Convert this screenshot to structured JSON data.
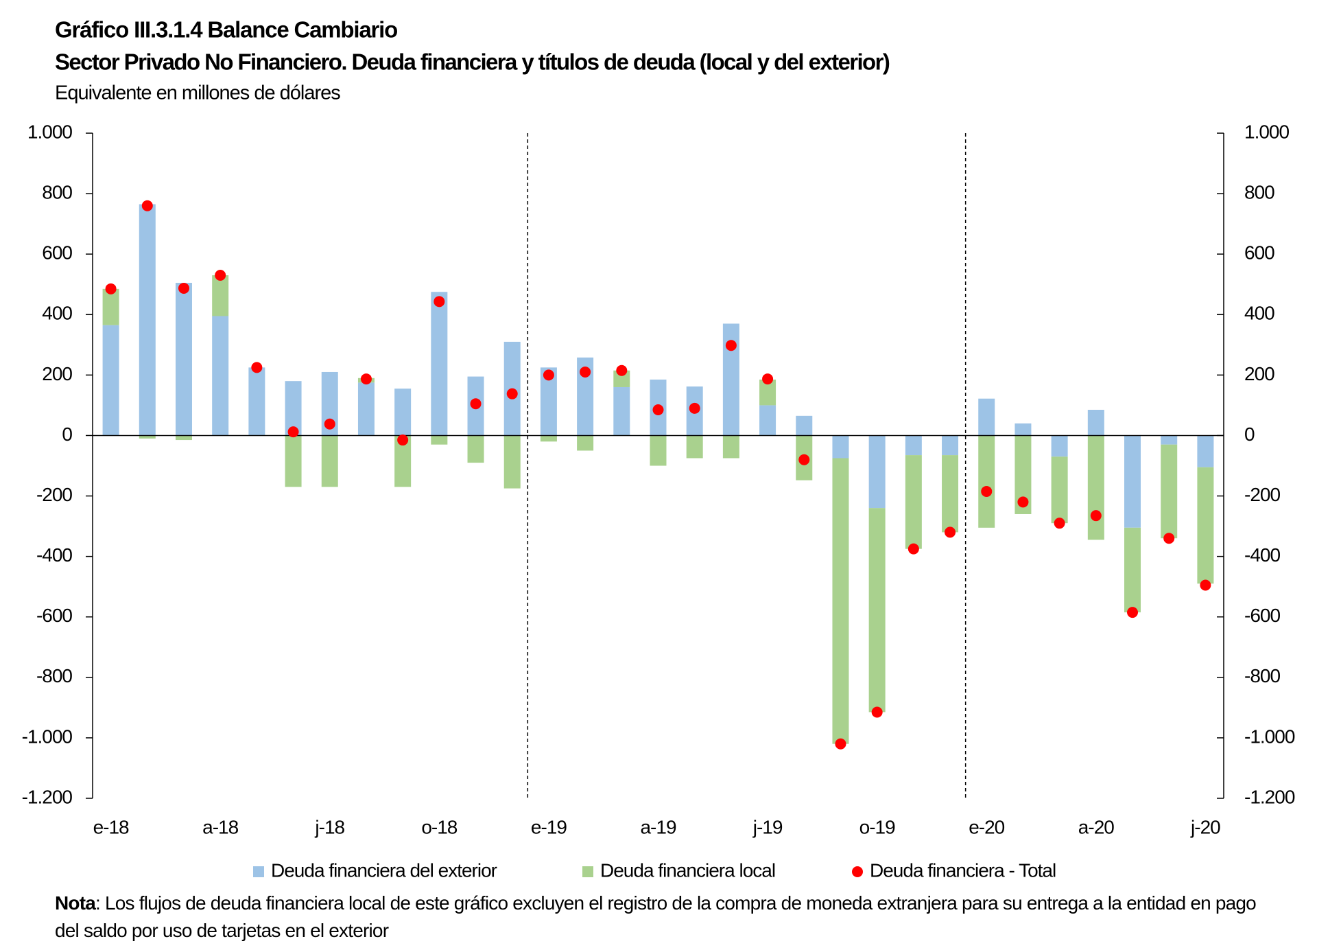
{
  "chart_data": {
    "type": "bar",
    "title": "Gráfico III.3.1.4 Balance Cambiario",
    "subtitle": "Sector Privado No Financiero. Deuda financiera y títulos de deuda (local y del exterior)",
    "unit_label": "Equivalente en millones de dólares",
    "categories": [
      "e-18",
      null,
      null,
      "a-18",
      null,
      null,
      "j-18",
      null,
      null,
      "o-18",
      null,
      null,
      "e-19",
      null,
      null,
      "a-19",
      null,
      null,
      "j-19",
      null,
      null,
      "o-19",
      null,
      null,
      "e-20",
      null,
      null,
      "a-20",
      null,
      null,
      "j-20"
    ],
    "series": [
      {
        "name": "Deuda financiera del exterior",
        "color": "#9dc3e6",
        "style": "bar",
        "values": [
          365,
          765,
          505,
          395,
          225,
          180,
          210,
          175,
          155,
          475,
          195,
          310,
          225,
          258,
          160,
          185,
          162,
          370,
          100,
          65,
          -75,
          -240,
          -65,
          -65,
          122,
          40,
          -70,
          85,
          -305,
          -30,
          -105
        ]
      },
      {
        "name": "Deuda financiera local",
        "color": "#a9d18e",
        "style": "bar",
        "values": [
          120,
          -10,
          -15,
          135,
          0,
          -170,
          -170,
          15,
          -170,
          -30,
          -90,
          -175,
          -20,
          -50,
          55,
          -100,
          -75,
          -75,
          85,
          -148,
          -945,
          -675,
          -310,
          -255,
          -305,
          -260,
          -220,
          -345,
          -280,
          -310,
          -385
        ]
      },
      {
        "name": "Deuda financiera - Total",
        "color": "#ff0000",
        "style": "dot",
        "values": [
          485,
          760,
          487,
          530,
          225,
          12,
          38,
          187,
          -15,
          443,
          105,
          138,
          200,
          210,
          215,
          85,
          90,
          298,
          187,
          -80,
          -1020,
          -915,
          -375,
          -320,
          -185,
          -220,
          -290,
          -265,
          -585,
          -340,
          -495
        ]
      }
    ],
    "ylim": [
      -1200,
      1000
    ],
    "yticks": [
      {
        "value": 1000,
        "label": "1.000"
      },
      800,
      600,
      400,
      200,
      0,
      -200,
      -400,
      -600,
      -800,
      {
        "value": -1000,
        "label": "-1.000"
      },
      {
        "value": -1200,
        "label": "-1.200"
      }
    ],
    "y2lim": [
      -1200,
      1000
    ],
    "y2ticks": [
      {
        "value": 1000,
        "label": "1.000"
      },
      800,
      600,
      400,
      200,
      0,
      -200,
      -400,
      -600,
      -800,
      {
        "value": -1000,
        "label": "-1.000"
      },
      {
        "value": -1200,
        "label": "-1.200"
      }
    ],
    "legend": "bottom",
    "note_label": "Nota",
    "note": ": Los flujos de deuda financiera local de este gráfico excluyen el registro de la compra de moneda extranjera para su entrega a la entidad en pago del saldo por uso de tarjetas en el exterior"
  }
}
